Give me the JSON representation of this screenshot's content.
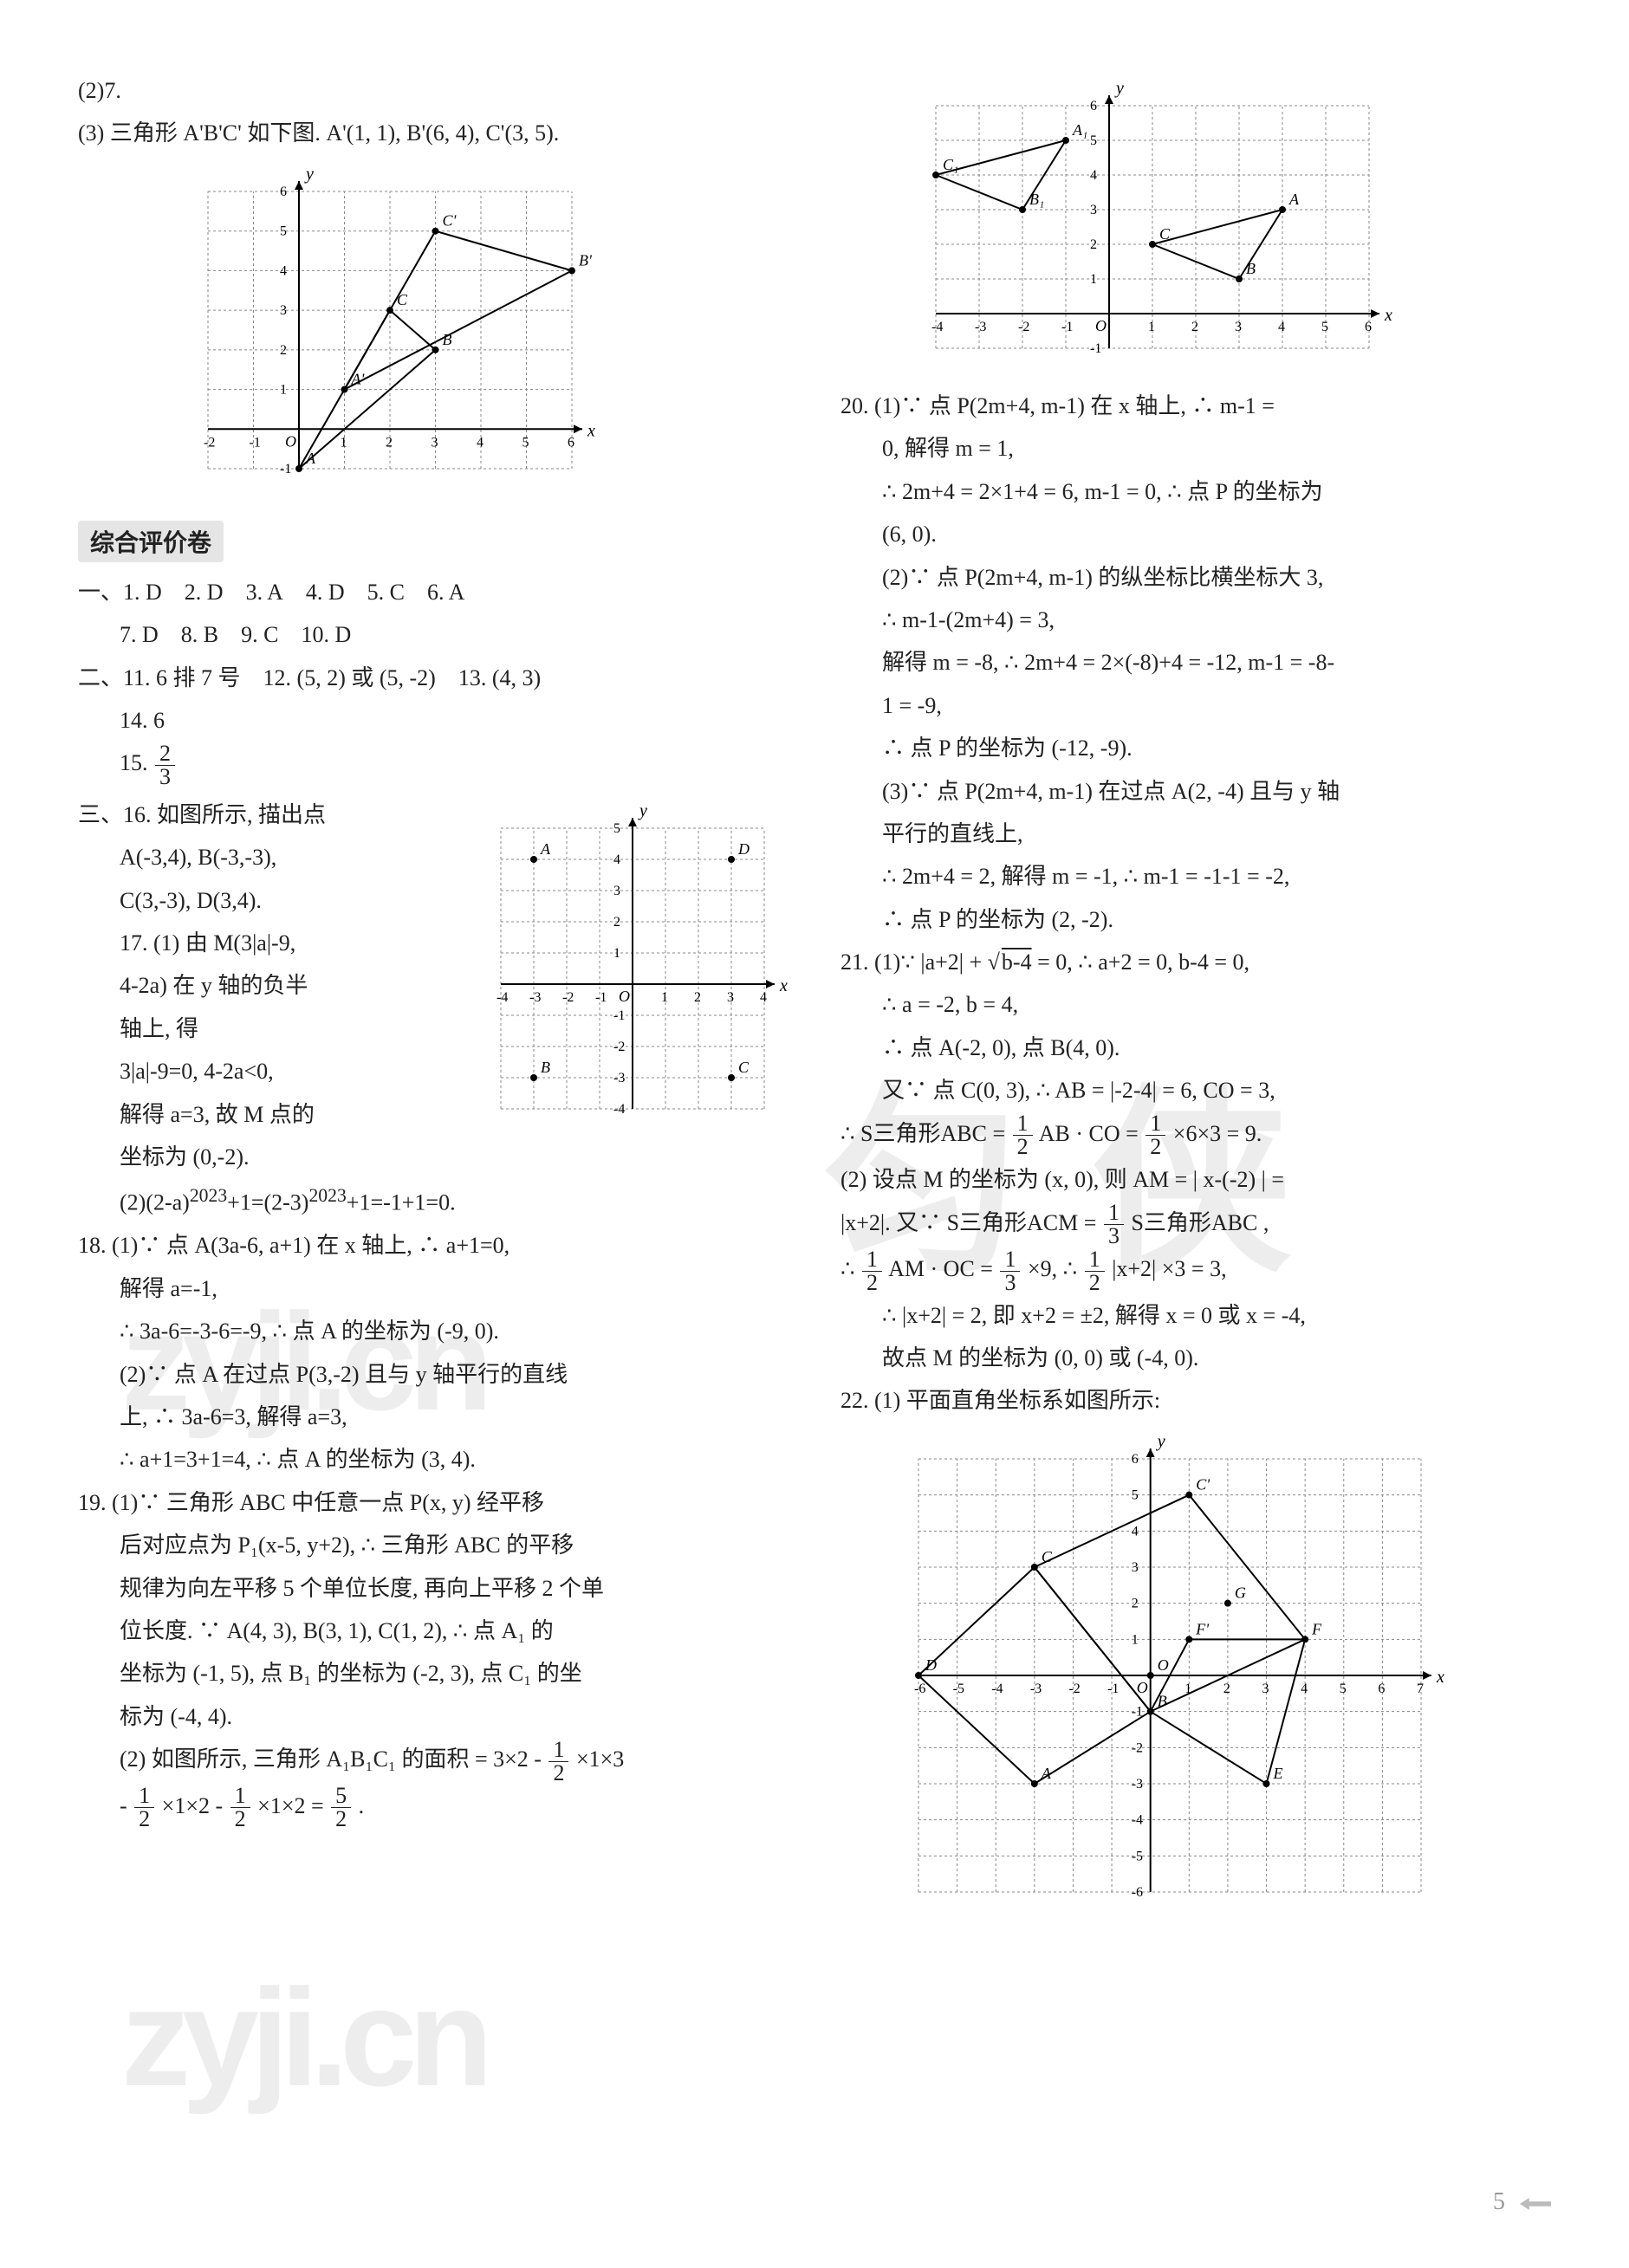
{
  "page_number": "5",
  "left": {
    "intro": [
      "(2)7.",
      "(3) 三角形 A'B'C' 如下图. A'(1, 1), B'(6, 4), C'(3, 5)."
    ],
    "chart1": {
      "type": "coordinate-grid-line",
      "xlim": [
        -2,
        6
      ],
      "ylim": [
        -1,
        6
      ],
      "labels": {
        "A": [
          0,
          -1
        ],
        "Ap": [
          1,
          1
        ],
        "B": [
          3,
          2
        ],
        "Bp": [
          6,
          4
        ],
        "C": [
          2,
          3
        ],
        "Cp": [
          3,
          5
        ]
      },
      "triangle1": [
        [
          0,
          -1
        ],
        [
          3,
          2
        ],
        [
          2,
          3
        ]
      ],
      "triangle2": [
        [
          1,
          1
        ],
        [
          6,
          4
        ],
        [
          3,
          5
        ]
      ],
      "grid_color": "#888",
      "axis_color": "#000",
      "line_color": "#000",
      "marker": "circle",
      "marker_size": 4,
      "dash": "3 3"
    },
    "section_ans_title": "综合评价卷",
    "mc_prefix": "一、",
    "mc": [
      {
        "n": "1",
        "v": "D"
      },
      {
        "n": "2",
        "v": "D"
      },
      {
        "n": "3",
        "v": "A"
      },
      {
        "n": "4",
        "v": "D"
      },
      {
        "n": "5",
        "v": "C"
      },
      {
        "n": "6",
        "v": "A"
      },
      {
        "n": "7",
        "v": "D"
      },
      {
        "n": "8",
        "v": "B"
      },
      {
        "n": "9",
        "v": "C"
      },
      {
        "n": "10",
        "v": "D"
      }
    ],
    "fill_prefix": "二、",
    "fill": [
      {
        "n": "11",
        "v": "6 排 7 号"
      },
      {
        "n": "12",
        "v": "(5, 2) 或 (5, -2)"
      },
      {
        "n": "13",
        "v": "(4, 3)"
      },
      {
        "n": "14",
        "v": "6"
      },
      {
        "n": "15",
        "v_frac": {
          "num": "2",
          "den": "3"
        }
      }
    ],
    "q16_prefix": "三、16.",
    "q16_lines": [
      "如图所示, 描出点",
      "A(-3,4), B(-3,-3),",
      "C(3,-3), D(3,4)."
    ],
    "q17_lines": [
      "17. (1) 由 M(3|a|-9,",
      "4-2a) 在 y 轴的负半",
      "轴上, 得",
      "3|a|-9=0, 4-2a<0,",
      "解得 a=3, 故 M 点的",
      "坐标为 (0,-2)."
    ],
    "chart2": {
      "type": "coordinate-grid-points",
      "xlim": [
        -4,
        4
      ],
      "ylim": [
        -4,
        5
      ],
      "points": {
        "A": [
          -3,
          4
        ],
        "B": [
          -3,
          -3
        ],
        "C": [
          3,
          -3
        ],
        "D": [
          3,
          4
        ]
      },
      "grid_color": "#888",
      "axis_color": "#000",
      "dash": "3 3"
    },
    "q17b": "(2)(2-a)^{2023}+1=(2-3)^{2023}+1=-1+1=0.",
    "q18": [
      "18. (1)∵ 点 A(3a-6, a+1) 在 x 轴上, ∴ a+1=0,",
      "解得 a=-1,",
      "∴ 3a-6=-3-6=-9, ∴ 点 A 的坐标为 (-9, 0).",
      "(2)∵ 点 A 在过点 P(3,-2) 且与 y 轴平行的直线",
      "上, ∴ 3a-6=3, 解得 a=3,",
      "∴ a+1=3+1=4, ∴ 点 A 的坐标为 (3, 4)."
    ],
    "q19": [
      "19. (1)∵ 三角形 ABC 中任意一点 P(x, y) 经平移",
      "后对应点为 P₁(x-5, y+2), ∴ 三角形 ABC 的平移",
      "规律为向左平移 5 个单位长度, 再向上平移 2 个单",
      "位长度. ∵ A(4, 3), B(3, 1), C(1, 2), ∴ 点 A₁ 的",
      "坐标为 (-1, 5), 点 B₁ 的坐标为 (-2, 3), 点 C₁ 的坐",
      "标为 (-4, 4)."
    ],
    "q19b_parts": {
      "pre": "(2) 如图所示, 三角形 A₁B₁C₁ 的面积 = 3×2 - ",
      "f1": {
        "num": "1",
        "den": "2"
      },
      "m1": "×1×3",
      "pre2": " - ",
      "f2": {
        "num": "1",
        "den": "2"
      },
      "m2": "×1×2 - ",
      "f3": {
        "num": "1",
        "den": "2"
      },
      "m3": "×1×2 = ",
      "f4": {
        "num": "5",
        "den": "2"
      },
      "post": "."
    }
  },
  "right": {
    "chart3": {
      "type": "coordinate-grid-triangles",
      "xlim": [
        -4,
        6
      ],
      "ylim": [
        -1,
        6
      ],
      "pts": {
        "A": [
          4,
          3
        ],
        "B": [
          3,
          1
        ],
        "C": [
          1,
          2
        ],
        "A1": [
          -1,
          5
        ],
        "B1": [
          -2,
          3
        ],
        "C1": [
          -4,
          4
        ]
      },
      "tri1": [
        [
          4,
          3
        ],
        [
          3,
          1
        ],
        [
          1,
          2
        ]
      ],
      "tri2": [
        [
          -1,
          5
        ],
        [
          -2,
          3
        ],
        [
          -4,
          4
        ]
      ],
      "grid_color": "#888",
      "axis_color": "#000",
      "dash": "3 3"
    },
    "q20": [
      "20. (1)∵   点 P(2m+4, m-1) 在 x 轴上, ∴   m-1 =",
      "0, 解得 m = 1,",
      "∴   2m+4 = 2×1+4 = 6, m-1 = 0, ∴   点 P 的坐标为",
      "(6, 0).",
      "(2)∵   点 P(2m+4, m-1) 的纵坐标比横坐标大 3,",
      "∴   m-1-(2m+4) = 3,",
      "解得 m = -8, ∴   2m+4 = 2×(-8)+4 = -12, m-1 = -8-",
      "1 = -9,",
      "∴   点 P 的坐标为 (-12, -9).",
      "(3)∵   点 P(2m+4, m-1) 在过点 A(2, -4) 且与 y 轴",
      "平行的直线上,",
      "∴   2m+4 = 2, 解得 m = -1, ∴   m-1 = -1-1 = -2,",
      "∴   点 P 的坐标为 (2, -2)."
    ],
    "q21a": {
      "l1_pre": "21. (1)∵   |a+2| + ",
      "sqrt": "b-4",
      "l1_post": " = 0, ∴   a+2 = 0, b-4 = 0,",
      "rest": [
        "∴   a = -2, b = 4,",
        "∴   点 A(-2, 0), 点 B(4, 0).",
        "又∵   点 C(0, 3), ∴   AB = |-2-4| = 6, CO = 3,"
      ],
      "area_pre": "∴   S三角形ABC = ",
      "f1": {
        "num": "1",
        "den": "2"
      },
      "m1": " AB · CO = ",
      "f2": {
        "num": "1",
        "den": "2"
      },
      "m2": " ×6×3 = 9."
    },
    "q21b": {
      "l1": "(2) 设点 M 的坐标为 (x, 0), 则 AM = | x-(-2) | =",
      "l2_pre": "|x+2|.  又∵   S三角形ACM = ",
      "f1": {
        "num": "1",
        "den": "3"
      },
      "m1": " S三角形ABC ,",
      "l3_pre": "∴   ",
      "f2": {
        "num": "1",
        "den": "2"
      },
      "m2": " AM · OC = ",
      "f3": {
        "num": "1",
        "den": "3"
      },
      "m3": " ×9, ∴   ",
      "f4": {
        "num": "1",
        "den": "2"
      },
      "m4": " |x+2| ×3 = 3,",
      "rest": [
        "∴   |x+2| = 2, 即 x+2 = ±2, 解得 x = 0 或 x = -4,",
        "故点 M 的坐标为 (0, 0) 或 (-4, 0)."
      ]
    },
    "q22": "22. (1) 平面直角坐标系如图所示:",
    "chart4": {
      "type": "coordinate-grid-diamonds",
      "xlim": [
        -6,
        7
      ],
      "ylim": [
        -6,
        6
      ],
      "pts": {
        "A": [
          -3,
          -3
        ],
        "B": [
          0,
          -1
        ],
        "C": [
          -3,
          3
        ],
        "Cp": [
          1,
          5
        ],
        "D": [
          -6,
          0
        ],
        "E": [
          3,
          -3
        ],
        "F": [
          4,
          1
        ],
        "Fp": [
          1,
          1
        ],
        "G": [
          2,
          2
        ],
        "O": [
          0,
          0
        ]
      },
      "grid_color": "#888",
      "axis_color": "#000",
      "dash": "3 3"
    }
  },
  "colors": {
    "text": "#222222",
    "grid": "#888888",
    "axis": "#000000",
    "bg": "#ffffff"
  },
  "font_sizes": {
    "body": 26,
    "title": 28,
    "watermark": 160
  }
}
